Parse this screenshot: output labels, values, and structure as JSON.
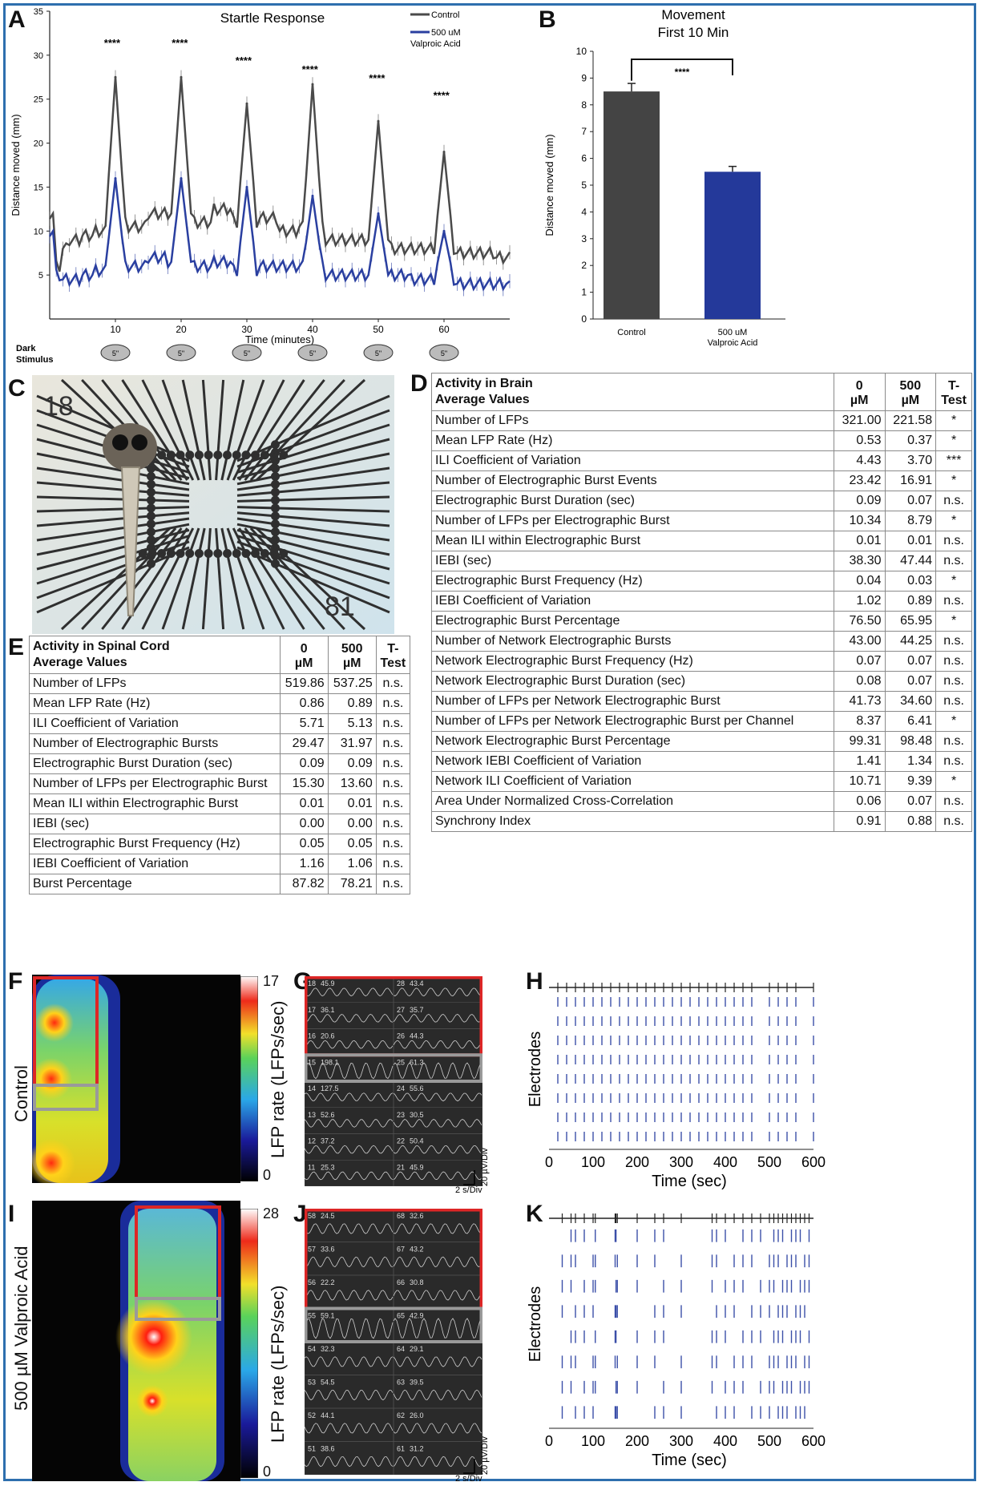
{
  "panels": {
    "A": "A",
    "B": "B",
    "C": "C",
    "D": "D",
    "E": "E",
    "F": "F",
    "G": "G",
    "H": "H",
    "I": "I",
    "J": "J",
    "K": "K"
  },
  "chart_data": [
    {
      "id": "A",
      "type": "line",
      "title": "Startle Response",
      "xlabel": "Time (minutes)",
      "ylabel": "Distance moved (mm)",
      "ylim": [
        0,
        35
      ],
      "xlim": [
        0,
        70
      ],
      "xticks": [
        10,
        20,
        30,
        40,
        50,
        60
      ],
      "yticks": [
        5,
        10,
        15,
        20,
        25,
        30,
        35
      ],
      "legend": [
        "Control",
        "500 uM Valproic Acid"
      ],
      "legend_lines": [
        "Control",
        "500 uM",
        "Valproic Acid"
      ],
      "annotations": [
        "****",
        "****",
        "****",
        "****",
        "****",
        "****"
      ],
      "annotation_x": [
        9.5,
        19.8,
        29.5,
        39.6,
        49.8,
        59.6
      ],
      "annotation_y": [
        31,
        31,
        29,
        28,
        27,
        25
      ],
      "stimulus_label": [
        "Dark",
        "Stimulus"
      ],
      "stimulus_x": [
        10,
        20,
        30,
        40,
        50,
        60
      ],
      "stimulus_text": "5\"",
      "series": [
        {
          "name": "Control",
          "color": "#4a4a4a",
          "peaks": [
            [
              10,
              27.5
            ],
            [
              20,
              27.5
            ],
            [
              30,
              24.5
            ],
            [
              40,
              26.7
            ],
            [
              50,
              22.5
            ],
            [
              60,
              19
            ]
          ],
          "baseline": [
            [
              0,
              12
            ],
            [
              1,
              6
            ],
            [
              2,
              8
            ],
            [
              3,
              9
            ],
            [
              5,
              9.5
            ],
            [
              7,
              10
            ],
            [
              9,
              11
            ],
            [
              12,
              10.5
            ],
            [
              15,
              12
            ],
            [
              18,
              12
            ],
            [
              22,
              11
            ],
            [
              25,
              12.5
            ],
            [
              28,
              11
            ],
            [
              32,
              11.5
            ],
            [
              35,
              10
            ],
            [
              38,
              10.5
            ],
            [
              42,
              9
            ],
            [
              45,
              9
            ],
            [
              48,
              9
            ],
            [
              52,
              8
            ],
            [
              55,
              8
            ],
            [
              58,
              8
            ],
            [
              62,
              7.5
            ],
            [
              65,
              7.5
            ],
            [
              68,
              7
            ],
            [
              70,
              7
            ]
          ]
        },
        {
          "name": "500 uM Valproic Acid",
          "color": "#2a3fa0",
          "peaks": [
            [
              10,
              16
            ],
            [
              20,
              16
            ],
            [
              30,
              15
            ],
            [
              40,
              14
            ],
            [
              50,
              12
            ],
            [
              60,
              10
            ]
          ],
          "baseline": [
            [
              0,
              10
            ],
            [
              1,
              5
            ],
            [
              2,
              4.5
            ],
            [
              3,
              4.5
            ],
            [
              5,
              5
            ],
            [
              7,
              5.5
            ],
            [
              9,
              6
            ],
            [
              12,
              6
            ],
            [
              15,
              7
            ],
            [
              18,
              6.5
            ],
            [
              22,
              6
            ],
            [
              25,
              6.5
            ],
            [
              28,
              5.5
            ],
            [
              32,
              6
            ],
            [
              35,
              6
            ],
            [
              38,
              6
            ],
            [
              42,
              5
            ],
            [
              45,
              5
            ],
            [
              48,
              5
            ],
            [
              52,
              5
            ],
            [
              55,
              4.5
            ],
            [
              58,
              4.5
            ],
            [
              62,
              4
            ],
            [
              65,
              4
            ],
            [
              68,
              4
            ],
            [
              70,
              3.7
            ]
          ]
        }
      ]
    },
    {
      "id": "B",
      "type": "bar",
      "title": "Movement",
      "subtitle": "First 10 Min",
      "ylabel": "Distance moved (mm)",
      "ylim": [
        0,
        10
      ],
      "yticks": [
        0,
        1,
        2,
        3,
        4,
        5,
        6,
        7,
        8,
        9,
        10
      ],
      "categories": [
        "Control",
        "500 uM Valproic Acid"
      ],
      "category_lines": [
        [
          "Control"
        ],
        [
          "500 uM",
          "Valproic Acid"
        ]
      ],
      "values": [
        8.5,
        5.5
      ],
      "errors": [
        0.3,
        0.2
      ],
      "colors": [
        "#444444",
        "#24399a"
      ],
      "significance": "****"
    }
  ],
  "photo_c": {
    "labels": [
      "18",
      "81"
    ]
  },
  "table_d": {
    "title_lines": [
      "Activity in Brain",
      "Average Values"
    ],
    "col_heads": [
      [
        "0",
        "µM"
      ],
      [
        "500",
        "µM"
      ],
      [
        "T-",
        "Test"
      ]
    ],
    "rows": [
      [
        "Number of LFPs",
        "321.00",
        "221.58",
        "*"
      ],
      [
        "Mean LFP Rate (Hz)",
        "0.53",
        "0.37",
        "*"
      ],
      [
        "ILI Coefficient of Variation",
        "4.43",
        "3.70",
        "***"
      ],
      [
        "Number of Electrographic Burst Events",
        "23.42",
        "16.91",
        "*"
      ],
      [
        "Electrographic Burst Duration (sec)",
        "0.09",
        "0.07",
        "n.s."
      ],
      [
        "Number of LFPs per Electrographic Burst",
        "10.34",
        "8.79",
        "*"
      ],
      [
        "Mean ILI within Electrographic Burst",
        "0.01",
        "0.01",
        "n.s."
      ],
      [
        "IEBI (sec)",
        "38.30",
        "47.44",
        "n.s."
      ],
      [
        "Electrographic Burst Frequency (Hz)",
        "0.04",
        "0.03",
        "*"
      ],
      [
        "IEBI Coefficient of Variation",
        "1.02",
        "0.89",
        "n.s."
      ],
      [
        "Electrographic Burst Percentage",
        "76.50",
        "65.95",
        "*"
      ],
      [
        "Number of Network Electrographic Bursts",
        "43.00",
        "44.25",
        "n.s."
      ],
      [
        "Network Electrographic Burst Frequency (Hz)",
        "0.07",
        "0.07",
        "n.s."
      ],
      [
        "Network Electrographic Burst Duration (sec)",
        "0.08",
        "0.07",
        "n.s."
      ],
      [
        "Number of LFPs per Network Electrographic Burst",
        "41.73",
        "34.60",
        "n.s."
      ],
      [
        "Number of LFPs per Network Electrographic Burst per Channel",
        "8.37",
        "6.41",
        "*"
      ],
      [
        "Network Electrographic Burst Percentage",
        "99.31",
        "98.48",
        "n.s."
      ],
      [
        "Network IEBI Coefficient of Variation",
        "1.41",
        "1.34",
        "n.s."
      ],
      [
        "Network ILI Coefficient of Variation",
        "10.71",
        "9.39",
        "*"
      ],
      [
        "Area Under Normalized Cross-Correlation",
        "0.06",
        "0.07",
        "n.s."
      ],
      [
        "Synchrony Index",
        "0.91",
        "0.88",
        "n.s."
      ]
    ]
  },
  "table_e": {
    "title_lines": [
      "Activity in Spinal Cord",
      "Average Values"
    ],
    "col_heads": [
      [
        "0",
        "µM"
      ],
      [
        "500",
        "µM"
      ],
      [
        "T-",
        "Test"
      ]
    ],
    "rows": [
      [
        "Number of LFPs",
        "519.86",
        "537.25",
        "n.s."
      ],
      [
        "Mean LFP Rate (Hz)",
        "0.86",
        "0.89",
        "n.s."
      ],
      [
        "ILI Coefficient of Variation",
        "5.71",
        "5.13",
        "n.s."
      ],
      [
        "Number of Electrographic Bursts",
        "29.47",
        "31.97",
        "n.s."
      ],
      [
        "Electrographic Burst Duration (sec)",
        "0.09",
        "0.09",
        "n.s."
      ],
      [
        "Number of LFPs per Electrographic Burst",
        "15.30",
        "13.60",
        "n.s."
      ],
      [
        "Mean ILI within Electrographic Burst",
        "0.01",
        "0.01",
        "n.s."
      ],
      [
        "IEBI (sec)",
        "0.00",
        "0.00",
        "n.s."
      ],
      [
        "Electrographic Burst Frequency (Hz)",
        "0.05",
        "0.05",
        "n.s."
      ],
      [
        "IEBI Coefficient of Variation",
        "1.16",
        "1.06",
        "n.s."
      ],
      [
        "Burst Percentage",
        "87.82",
        "78.21",
        "n.s."
      ]
    ]
  },
  "heat_f": {
    "side_label": "Control",
    "cbar_label": "LFP rate (LFPs/sec)",
    "cbar_max": "17",
    "cbar_min": "0"
  },
  "heat_i": {
    "side_label": "500 µM Valproic Acid",
    "cbar_label": "LFP rate (LFPs/sec)",
    "cbar_max": "28",
    "cbar_min": "0"
  },
  "traces_g": {
    "left": [
      [
        "18",
        "45.9"
      ],
      [
        "17",
        "36.1"
      ],
      [
        "16",
        "20.6"
      ],
      [
        "15",
        "198.1"
      ],
      [
        "14",
        "127.5"
      ],
      [
        "13",
        "52.6"
      ],
      [
        "12",
        "37.2"
      ],
      [
        "11",
        "25.3"
      ]
    ],
    "right": [
      [
        "28",
        "43.4"
      ],
      [
        "27",
        "35.7"
      ],
      [
        "26",
        "44.3"
      ],
      [
        "25",
        "61.3"
      ],
      [
        "24",
        "55.6"
      ],
      [
        "23",
        "30.5"
      ],
      [
        "22",
        "50.4"
      ],
      [
        "21",
        "45.9"
      ]
    ],
    "scale_x": "2 s/Div",
    "scale_y": "20 µV/Div"
  },
  "traces_j": {
    "left": [
      [
        "58",
        "24.5"
      ],
      [
        "57",
        "33.6"
      ],
      [
        "56",
        "22.2"
      ],
      [
        "55",
        "59.1"
      ],
      [
        "54",
        "32.3"
      ],
      [
        "53",
        "54.5"
      ],
      [
        "52",
        "44.1"
      ],
      [
        "51",
        "38.6"
      ]
    ],
    "right": [
      [
        "68",
        "32.6"
      ],
      [
        "67",
        "43.2"
      ],
      [
        "66",
        "30.8"
      ],
      [
        "65",
        "42.9"
      ],
      [
        "64",
        "29.1"
      ],
      [
        "63",
        "39.5"
      ],
      [
        "62",
        "26.0"
      ],
      [
        "61",
        "31.2"
      ]
    ],
    "scale_x": "2 s/Div",
    "scale_y": "20 µV/Div"
  },
  "raster_h": {
    "ylabel": "Electrodes",
    "xlabel": "Time (sec)",
    "xticks": [
      "0",
      "100",
      "200",
      "300",
      "400",
      "500",
      "600"
    ]
  },
  "raster_k": {
    "ylabel": "Electrodes",
    "xlabel": "Time (sec)",
    "xticks": [
      "0",
      "100",
      "200",
      "300",
      "400",
      "500",
      "600"
    ]
  }
}
